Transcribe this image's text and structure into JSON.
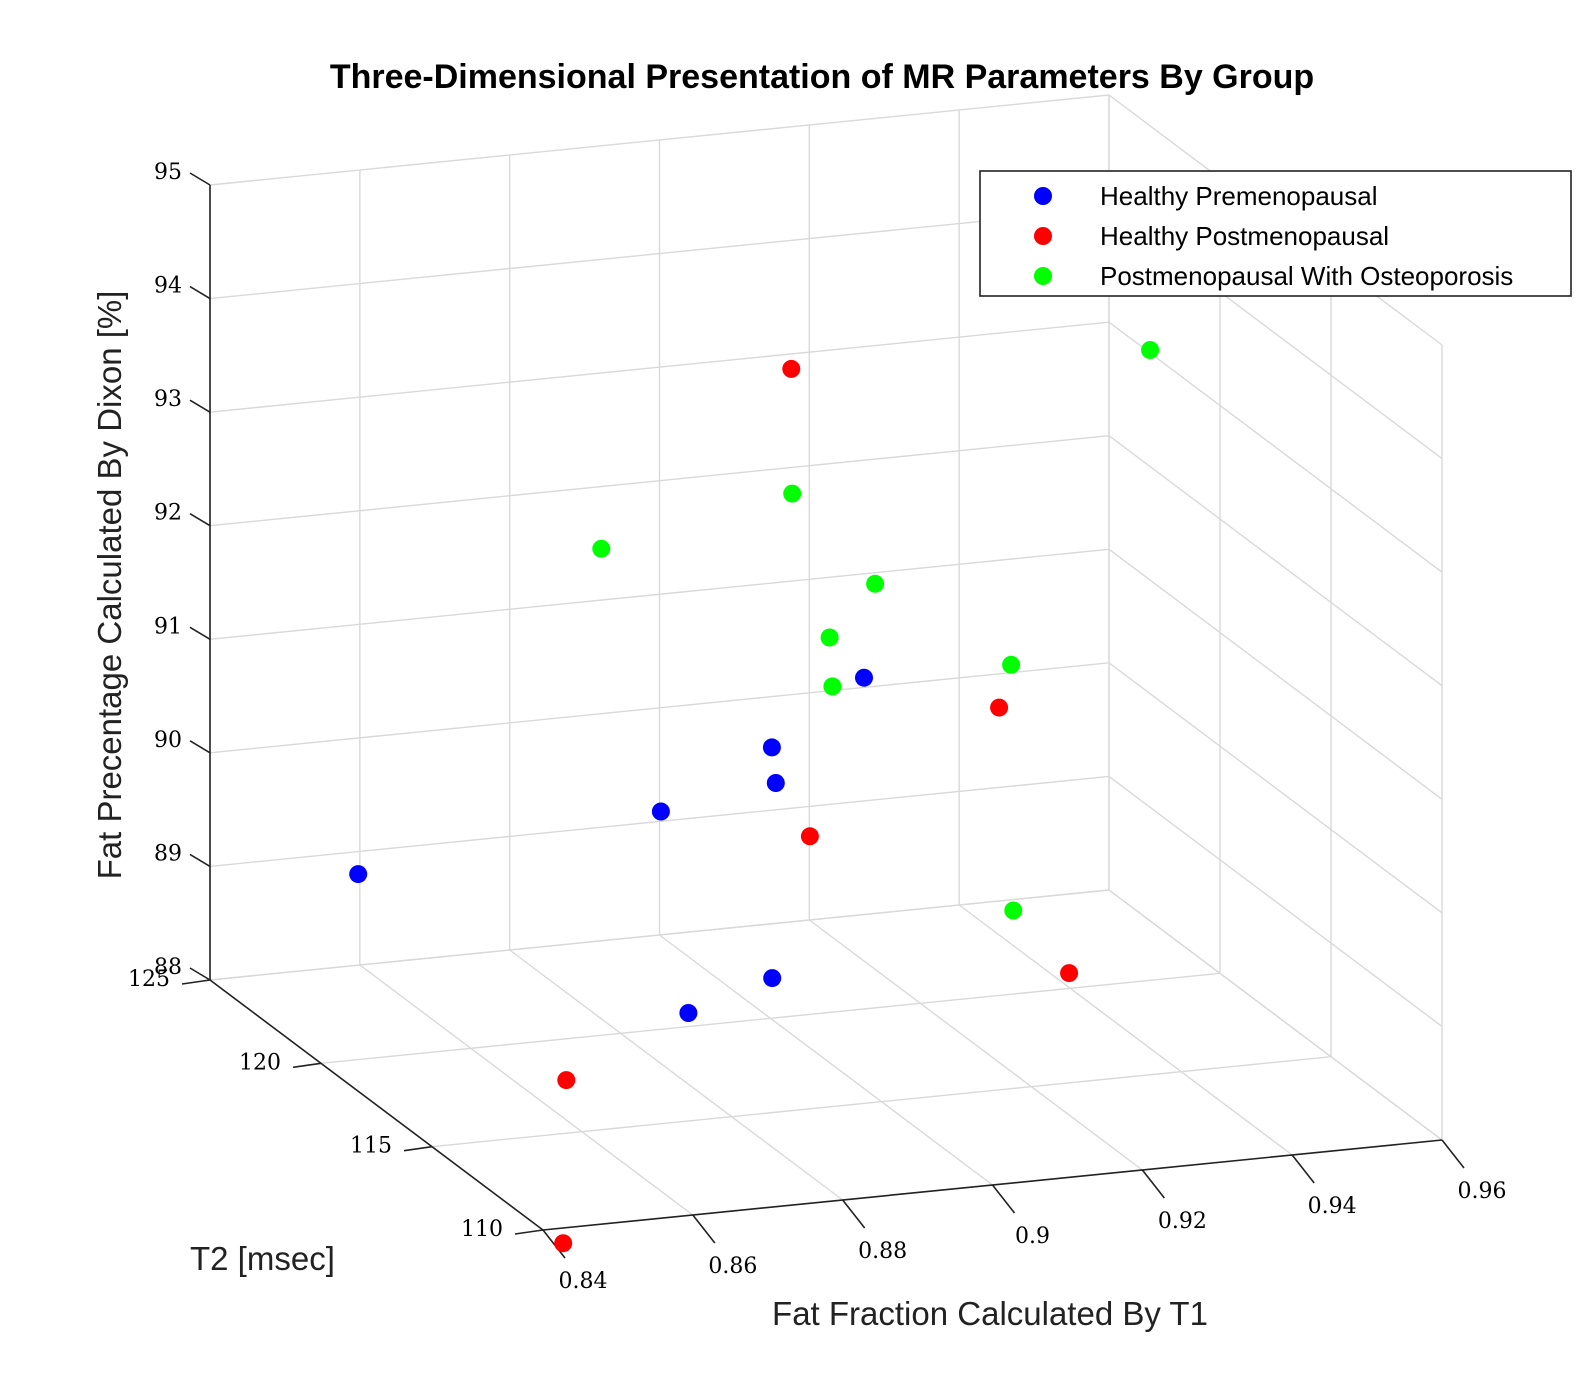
{
  "chart_data": {
    "type": "scatter",
    "title": "Three-Dimensional Presentation of MR Parameters By Group",
    "xlabel": "Fat Fraction Calculated By T1",
    "ylabel": "T2 [msec]",
    "zlabel": "Fat Precentage Calculated By Dixon [%]",
    "xlim": [
      0.84,
      0.96
    ],
    "ylim": [
      110,
      125
    ],
    "zlim": [
      88,
      95
    ],
    "x_ticks": [
      "0.84",
      "0.86",
      "0.88",
      "0.9",
      "0.92",
      "0.94",
      "0.96"
    ],
    "y_ticks": [
      "110",
      "115",
      "120",
      "125"
    ],
    "z_ticks": [
      "88",
      "89",
      "90",
      "91",
      "92",
      "93",
      "94",
      "95"
    ],
    "grid": true,
    "legend_position": "top-right",
    "series": [
      {
        "name": "Healthy Premenopausal",
        "color": "#0000ff",
        "points": [
          {
            "x": 0.842,
            "y": 119.0,
            "z": 89.8
          },
          {
            "x": 0.868,
            "y": 112.9,
            "z": 89.3
          },
          {
            "x": 0.875,
            "y": 116.5,
            "z": 90.5
          },
          {
            "x": 0.878,
            "y": 112.5,
            "z": 89.6
          },
          {
            "x": 0.891,
            "y": 116.9,
            "z": 90.9
          },
          {
            "x": 0.893,
            "y": 117.4,
            "z": 90.5
          },
          {
            "x": 0.911,
            "y": 119.5,
            "z": 91.0
          }
        ]
      },
      {
        "name": "Healthy Postmenopausal",
        "color": "#ff0000",
        "points": [
          {
            "x": 0.852,
            "y": 113.0,
            "z": 88.8
          },
          {
            "x": 0.851,
            "y": 112.8,
            "z": 87.4
          },
          {
            "x": 0.901,
            "y": 119.4,
            "z": 93.8
          },
          {
            "x": 0.894,
            "y": 116.2,
            "z": 90.2
          },
          {
            "x": 0.924,
            "y": 117.8,
            "z": 90.9
          },
          {
            "x": 0.928,
            "y": 116.0,
            "z": 88.8
          }
        ]
      },
      {
        "name": "Postmenopausal With Osteoporosis",
        "color": "#00ff00",
        "points": [
          {
            "x": 0.87,
            "y": 117.5,
            "z": 92.7
          },
          {
            "x": 0.894,
            "y": 117.0,
            "z": 93.1
          },
          {
            "x": 0.897,
            "y": 116.2,
            "z": 91.5
          },
          {
            "x": 0.899,
            "y": 117.0,
            "z": 91.8
          },
          {
            "x": 0.911,
            "y": 119.0,
            "z": 91.9
          },
          {
            "x": 0.917,
            "y": 114.8,
            "z": 89.6
          },
          {
            "x": 0.925,
            "y": 117.6,
            "z": 91.3
          },
          {
            "x": 0.948,
            "y": 119.1,
            "z": 93.7
          }
        ]
      }
    ]
  }
}
